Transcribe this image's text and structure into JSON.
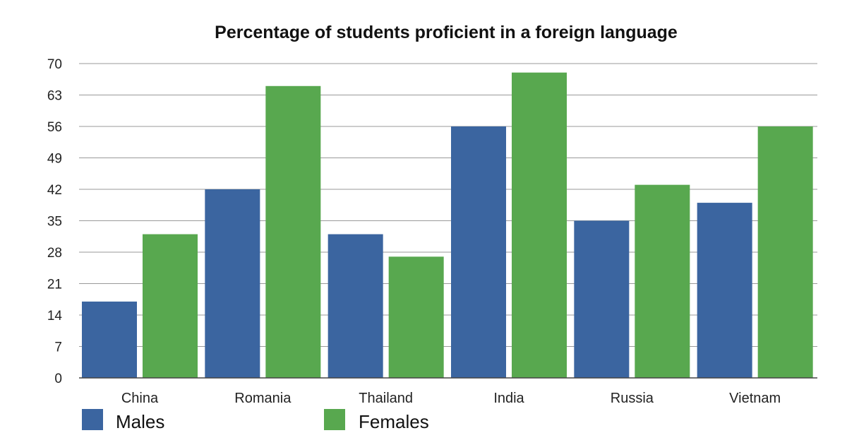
{
  "chart_data": {
    "type": "bar",
    "title": "Percentage of students proficient in a foreign language",
    "categories": [
      "China",
      "Romania",
      "Thailand",
      "India",
      "Russia",
      "Vietnam"
    ],
    "series": [
      {
        "name": "Males",
        "values": [
          17,
          42,
          32,
          56,
          35,
          39
        ],
        "color": "#3b65a0"
      },
      {
        "name": "Females",
        "values": [
          32,
          65,
          27,
          68,
          43,
          56
        ],
        "color": "#58a84f"
      }
    ],
    "yticks": [
      0,
      7,
      14,
      21,
      28,
      35,
      42,
      49,
      56,
      63,
      70
    ],
    "ylim": [
      0,
      70
    ],
    "xlabel": "",
    "ylabel": "",
    "grid": true,
    "legend": "bottom"
  }
}
